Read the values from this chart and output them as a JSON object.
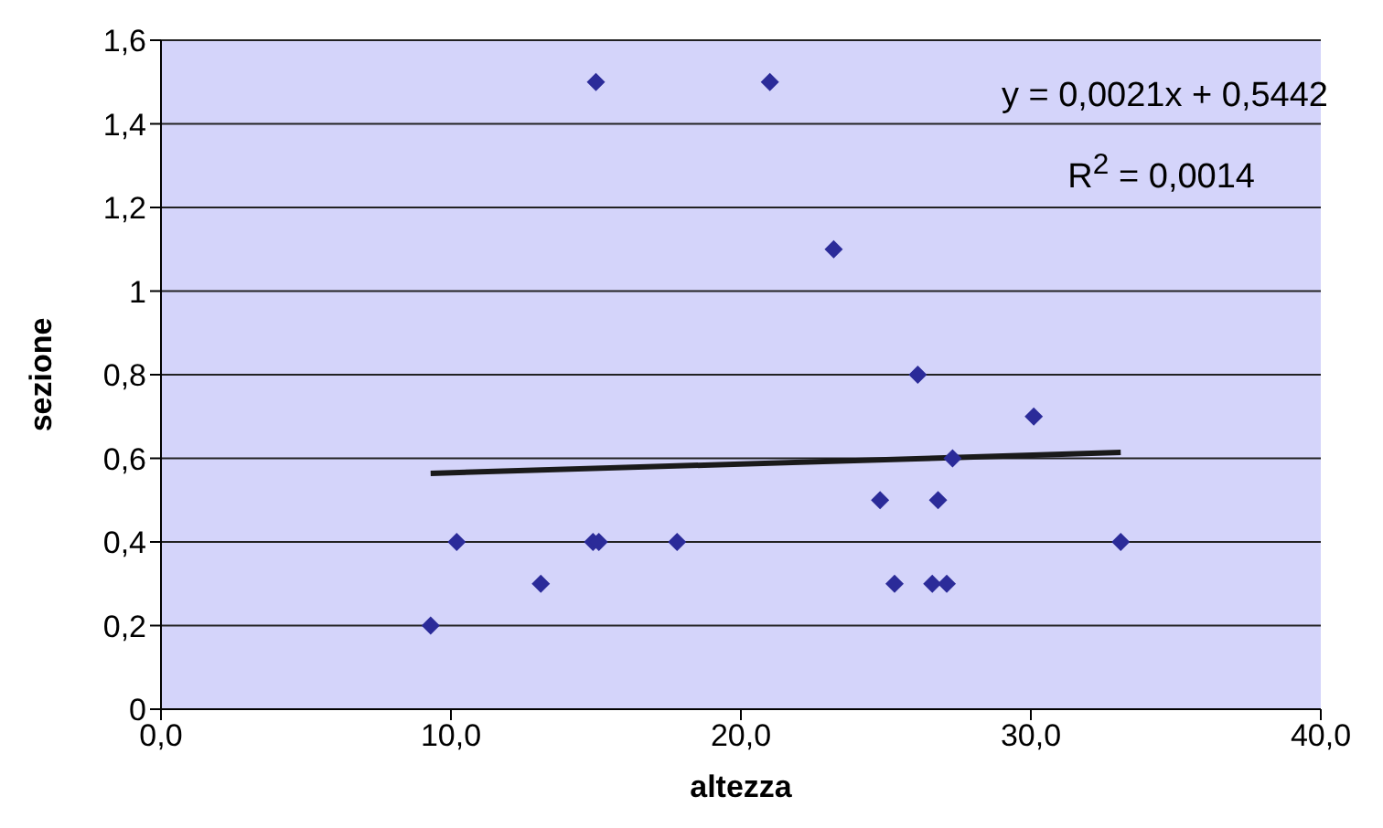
{
  "chart_data": {
    "type": "scatter",
    "xlabel": "altezza",
    "ylabel": "sezione",
    "xlim": [
      0,
      40
    ],
    "xticks": [
      {
        "value": 0,
        "label": "0,0"
      },
      {
        "value": 10,
        "label": "10,0"
      },
      {
        "value": 20,
        "label": "20,0"
      },
      {
        "value": 30,
        "label": "30,0"
      },
      {
        "value": 40,
        "label": "40,0"
      }
    ],
    "ylim": [
      0,
      1.6
    ],
    "yticks": [
      0,
      {
        "value": 0.2,
        "label": "0,2"
      },
      {
        "value": 0.4,
        "label": "0,4"
      },
      {
        "value": 0.6,
        "label": "0,6"
      },
      {
        "value": 0.8,
        "label": "0,8"
      },
      1,
      {
        "value": 1.2,
        "label": "1,2"
      },
      {
        "value": 1.4,
        "label": "1,4"
      },
      {
        "value": 1.6,
        "label": "1,6"
      }
    ],
    "grid": "y",
    "marker": "diamond",
    "series": [
      {
        "type": "scatter",
        "color": "#2b2b99",
        "marker": "diamond",
        "x": [
          9.3,
          10.2,
          13.1,
          15.0,
          14.9,
          15.1,
          17.8,
          21.0,
          23.2,
          26.1,
          30.1,
          24.8,
          26.8,
          27.3,
          25.3,
          26.6,
          27.1,
          33.1
        ],
        "values": [
          0.2,
          0.4,
          0.3,
          1.5,
          0.4,
          0.4,
          0.4,
          1.5,
          1.1,
          0.8,
          0.7,
          0.5,
          0.5,
          0.6,
          0.3,
          0.3,
          0.3,
          0.4
        ]
      },
      {
        "type": "line",
        "color": "#1a1a1a",
        "marker": "none",
        "line_style": "solid",
        "x": [
          9.3,
          33.1
        ],
        "values": [
          0.564,
          0.614
        ]
      }
    ],
    "annotations": [
      "y = 0,0021x + 0,5442",
      "R$^{2}$ = 0,0014"
    ]
  }
}
